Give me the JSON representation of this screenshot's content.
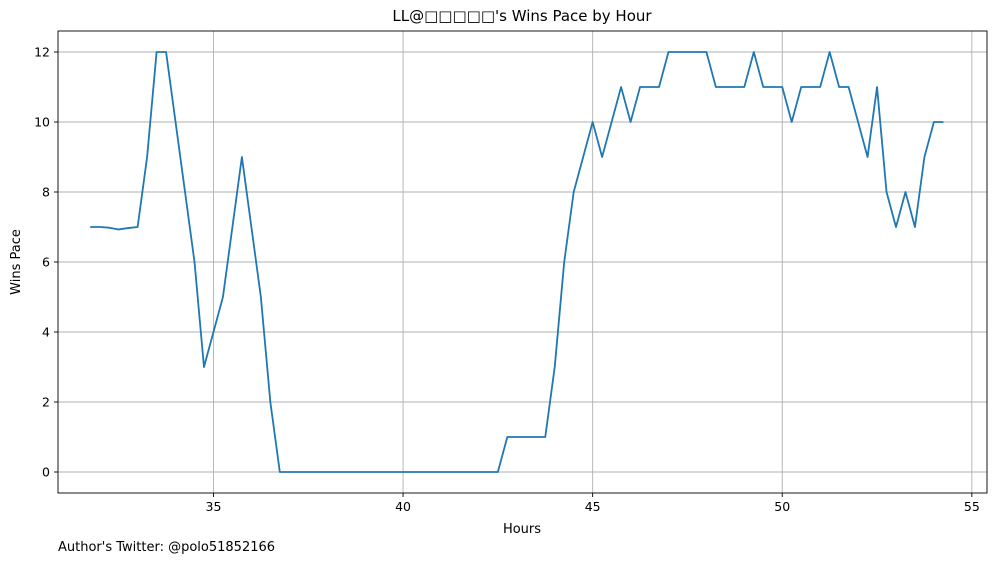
{
  "chart_data": {
    "type": "line",
    "title": "LL@□□□□□'s Wins Pace by Hour",
    "xlabel": "Hours",
    "ylabel": "Wins Pace",
    "xlim": [
      30.9,
      55.4
    ],
    "ylim": [
      -0.6,
      12.6
    ],
    "xticks": [
      35,
      40,
      45,
      50,
      55
    ],
    "yticks": [
      0,
      2,
      4,
      6,
      8,
      10,
      12
    ],
    "grid": true,
    "line_color": "#1f77b4",
    "series": [
      {
        "x": [
          31.75,
          32.0,
          32.25,
          32.5,
          32.75,
          33.0,
          33.25,
          33.5,
          33.75,
          34.0,
          34.25,
          34.5,
          34.75,
          35.0,
          35.25,
          35.5,
          35.75,
          36.0,
          36.25,
          36.5,
          36.75,
          37.0,
          37.5,
          38.0,
          39.0,
          40.0,
          41.0,
          42.0,
          42.5,
          42.75,
          43.0,
          43.25,
          43.5,
          43.75,
          44.0,
          44.25,
          44.5,
          44.75,
          45.0,
          45.25,
          45.5,
          45.75,
          46.0,
          46.25,
          46.5,
          46.75,
          47.0,
          47.25,
          47.5,
          47.75,
          48.0,
          48.25,
          48.5,
          48.75,
          49.0,
          49.25,
          49.5,
          49.75,
          50.0,
          50.25,
          50.5,
          50.75,
          51.0,
          51.25,
          51.5,
          51.75,
          52.0,
          52.25,
          52.5,
          52.75,
          53.0,
          53.25,
          53.5,
          53.75,
          54.0,
          54.25
        ],
        "y": [
          7,
          7,
          6.98,
          6.93,
          6.97,
          7,
          9,
          12,
          12,
          10,
          8,
          6,
          3,
          4,
          5,
          7,
          9,
          7,
          5,
          2,
          0,
          0,
          0,
          0,
          0,
          0,
          0,
          0,
          0,
          1,
          1,
          1,
          1,
          1,
          3,
          6,
          8,
          9,
          10,
          9,
          10,
          11,
          10,
          11,
          11,
          11,
          12,
          12,
          12,
          12,
          12,
          11,
          11,
          11,
          11,
          12,
          11,
          11,
          11,
          10,
          11,
          11,
          11,
          12,
          11,
          11,
          10,
          9,
          11,
          8,
          7,
          8,
          7,
          9,
          10,
          10
        ]
      }
    ]
  },
  "footer_text": "Author's Twitter: @polo51852166"
}
